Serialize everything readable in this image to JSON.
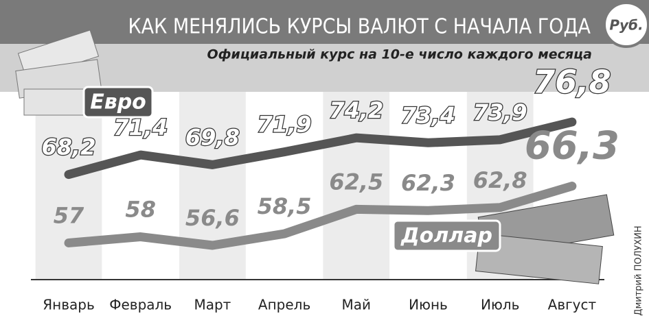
{
  "chart_data": {
    "type": "line",
    "title": "КАК МЕНЯЛИСЬ КУРСЫ ВАЛЮТ С НАЧАЛА ГОДА",
    "subtitle": "Официальный курс на 10-е число каждого месяца",
    "unit": "Руб.",
    "credit": "Дмитрий ПОЛУХИН",
    "categories": [
      "Январь",
      "Февраль",
      "Март",
      "Апрель",
      "Май",
      "Июнь",
      "Июль",
      "Август"
    ],
    "series": [
      {
        "name": "Евро",
        "color": "#555555",
        "values": [
          68.2,
          71.4,
          69.8,
          71.9,
          74.2,
          73.4,
          73.9,
          76.8
        ],
        "value_labels": [
          "68,2",
          "71,4",
          "69,8",
          "71,9",
          "74,2",
          "73,4",
          "73,9",
          "76,8"
        ]
      },
      {
        "name": "Доллар",
        "color": "#8a8a8a",
        "values": [
          57,
          58,
          56.6,
          58.5,
          62.5,
          62.3,
          62.8,
          66.3
        ],
        "value_labels": [
          "57",
          "58",
          "56,6",
          "58,5",
          "62,5",
          "62,3",
          "62,8",
          "66,3"
        ]
      }
    ]
  }
}
